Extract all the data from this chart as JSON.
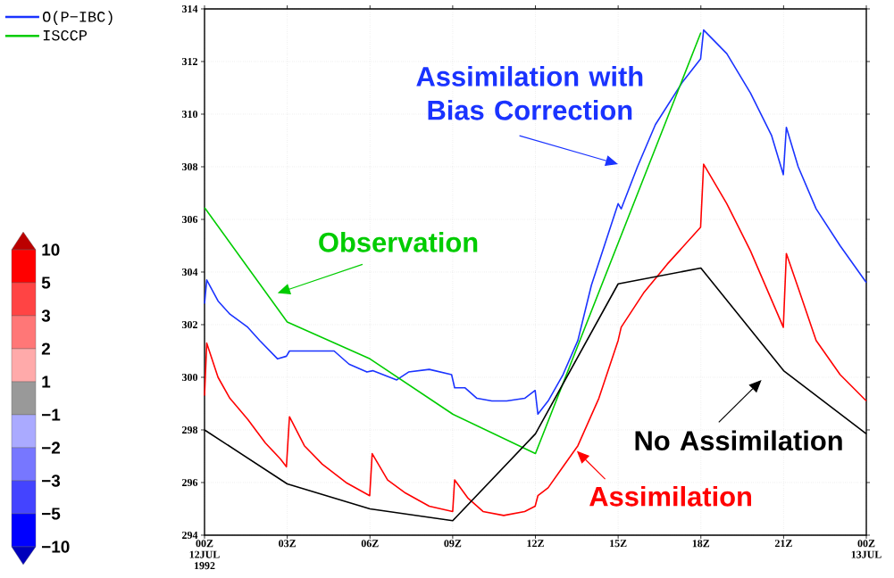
{
  "chart_data": {
    "type": "line",
    "xlim": [
      0,
      24
    ],
    "ylim": [
      294,
      314
    ],
    "xticks": [
      {
        "value": 0,
        "label": "00Z 12JUL 1992"
      },
      {
        "value": 3,
        "label": "03Z"
      },
      {
        "value": 6,
        "label": "06Z"
      },
      {
        "value": 9,
        "label": "09Z"
      },
      {
        "value": 12,
        "label": "12Z"
      },
      {
        "value": 15,
        "label": "15Z"
      },
      {
        "value": 18,
        "label": "18Z"
      },
      {
        "value": 21,
        "label": "21Z"
      },
      {
        "value": 24,
        "label": "00Z 13JUL"
      }
    ],
    "yticks": [
      294,
      296,
      298,
      300,
      302,
      304,
      306,
      308,
      310,
      312,
      314
    ],
    "grid": true,
    "legend": "top left",
    "marker": "none",
    "line_style": "solid",
    "series": [
      {
        "name": "O(P−IBC)",
        "color": "#1a33ff",
        "x": [
          0,
          0.08,
          0.49,
          0.92,
          1.57,
          2.0,
          2.65,
          2.97,
          3.08,
          3.83,
          4.7,
          5.24,
          5.89,
          6.1,
          6.97,
          7.4,
          8.15,
          8.96,
          9.07,
          9.45,
          9.88,
          10.42,
          10.96,
          11.61,
          11.99,
          12.09,
          12.46,
          13.0,
          13.54,
          14.03,
          15.0,
          15.11,
          15.7,
          16.35,
          17.32,
          17.99,
          18.1,
          18.94,
          19.8,
          20.56,
          20.99,
          21.1,
          21.53,
          22.18,
          23.05,
          24
        ],
        "values": [
          302.8,
          303.7,
          302.9,
          302.4,
          301.9,
          301.4,
          300.7,
          300.8,
          301.0,
          301.0,
          301.0,
          300.5,
          300.2,
          300.25,
          299.9,
          300.2,
          300.3,
          300.1,
          299.6,
          299.6,
          299.2,
          299.1,
          299.1,
          299.2,
          299.5,
          298.6,
          299.1,
          300.1,
          301.4,
          303.5,
          306.6,
          306.4,
          308.0,
          309.6,
          311.2,
          312.1,
          313.2,
          312.3,
          310.8,
          309.2,
          307.7,
          309.5,
          308.0,
          306.4,
          305.0,
          303.6
        ]
      },
      {
        "name": "ISCCP",
        "color": "#00cc00",
        "x": [
          0,
          3,
          6,
          9,
          12,
          18
        ],
        "values": [
          306.45,
          302.1,
          300.7,
          298.6,
          297.1,
          313.1
        ]
      },
      {
        "color": "#ff0000",
        "x": [
          0,
          0.08,
          0.49,
          0.92,
          1.57,
          2.21,
          2.75,
          2.97,
          3.08,
          3.62,
          4.27,
          5.13,
          5.99,
          6.08,
          6.64,
          7.29,
          8.15,
          9.0,
          9.07,
          9.56,
          10.1,
          10.85,
          11.61,
          11.99,
          12.09,
          12.46,
          13.0,
          13.54,
          14.3,
          15.0,
          15.11,
          15.92,
          16.78,
          17.99,
          18.1,
          18.94,
          19.8,
          20.99,
          21.1,
          21.53,
          22.18,
          23.05,
          24
        ],
        "values": [
          299.3,
          301.3,
          300.0,
          299.2,
          298.4,
          297.5,
          296.9,
          296.6,
          298.5,
          297.4,
          296.7,
          296.0,
          295.5,
          297.1,
          296.1,
          295.6,
          295.1,
          294.9,
          296.1,
          295.4,
          294.9,
          294.75,
          294.9,
          295.1,
          295.5,
          295.8,
          296.6,
          297.4,
          299.2,
          301.4,
          301.9,
          303.2,
          304.3,
          305.7,
          308.1,
          306.6,
          304.8,
          301.9,
          304.7,
          303.4,
          301.4,
          300.1,
          299.1
        ]
      },
      {
        "color": "#000000",
        "x": [
          0,
          3,
          6,
          9,
          12,
          15,
          18,
          21,
          24
        ],
        "values": [
          298.0,
          295.95,
          295.0,
          294.55,
          297.85,
          303.55,
          304.15,
          300.25,
          297.85
        ]
      }
    ],
    "annotations": [
      "Assimilation with Bias Correction",
      "Observation",
      "No Assimilation",
      "Assimilation",
      "10",
      "5",
      "3",
      "2",
      "1",
      "−1",
      "−2",
      "−3",
      "−5",
      "−10"
    ]
  }
}
